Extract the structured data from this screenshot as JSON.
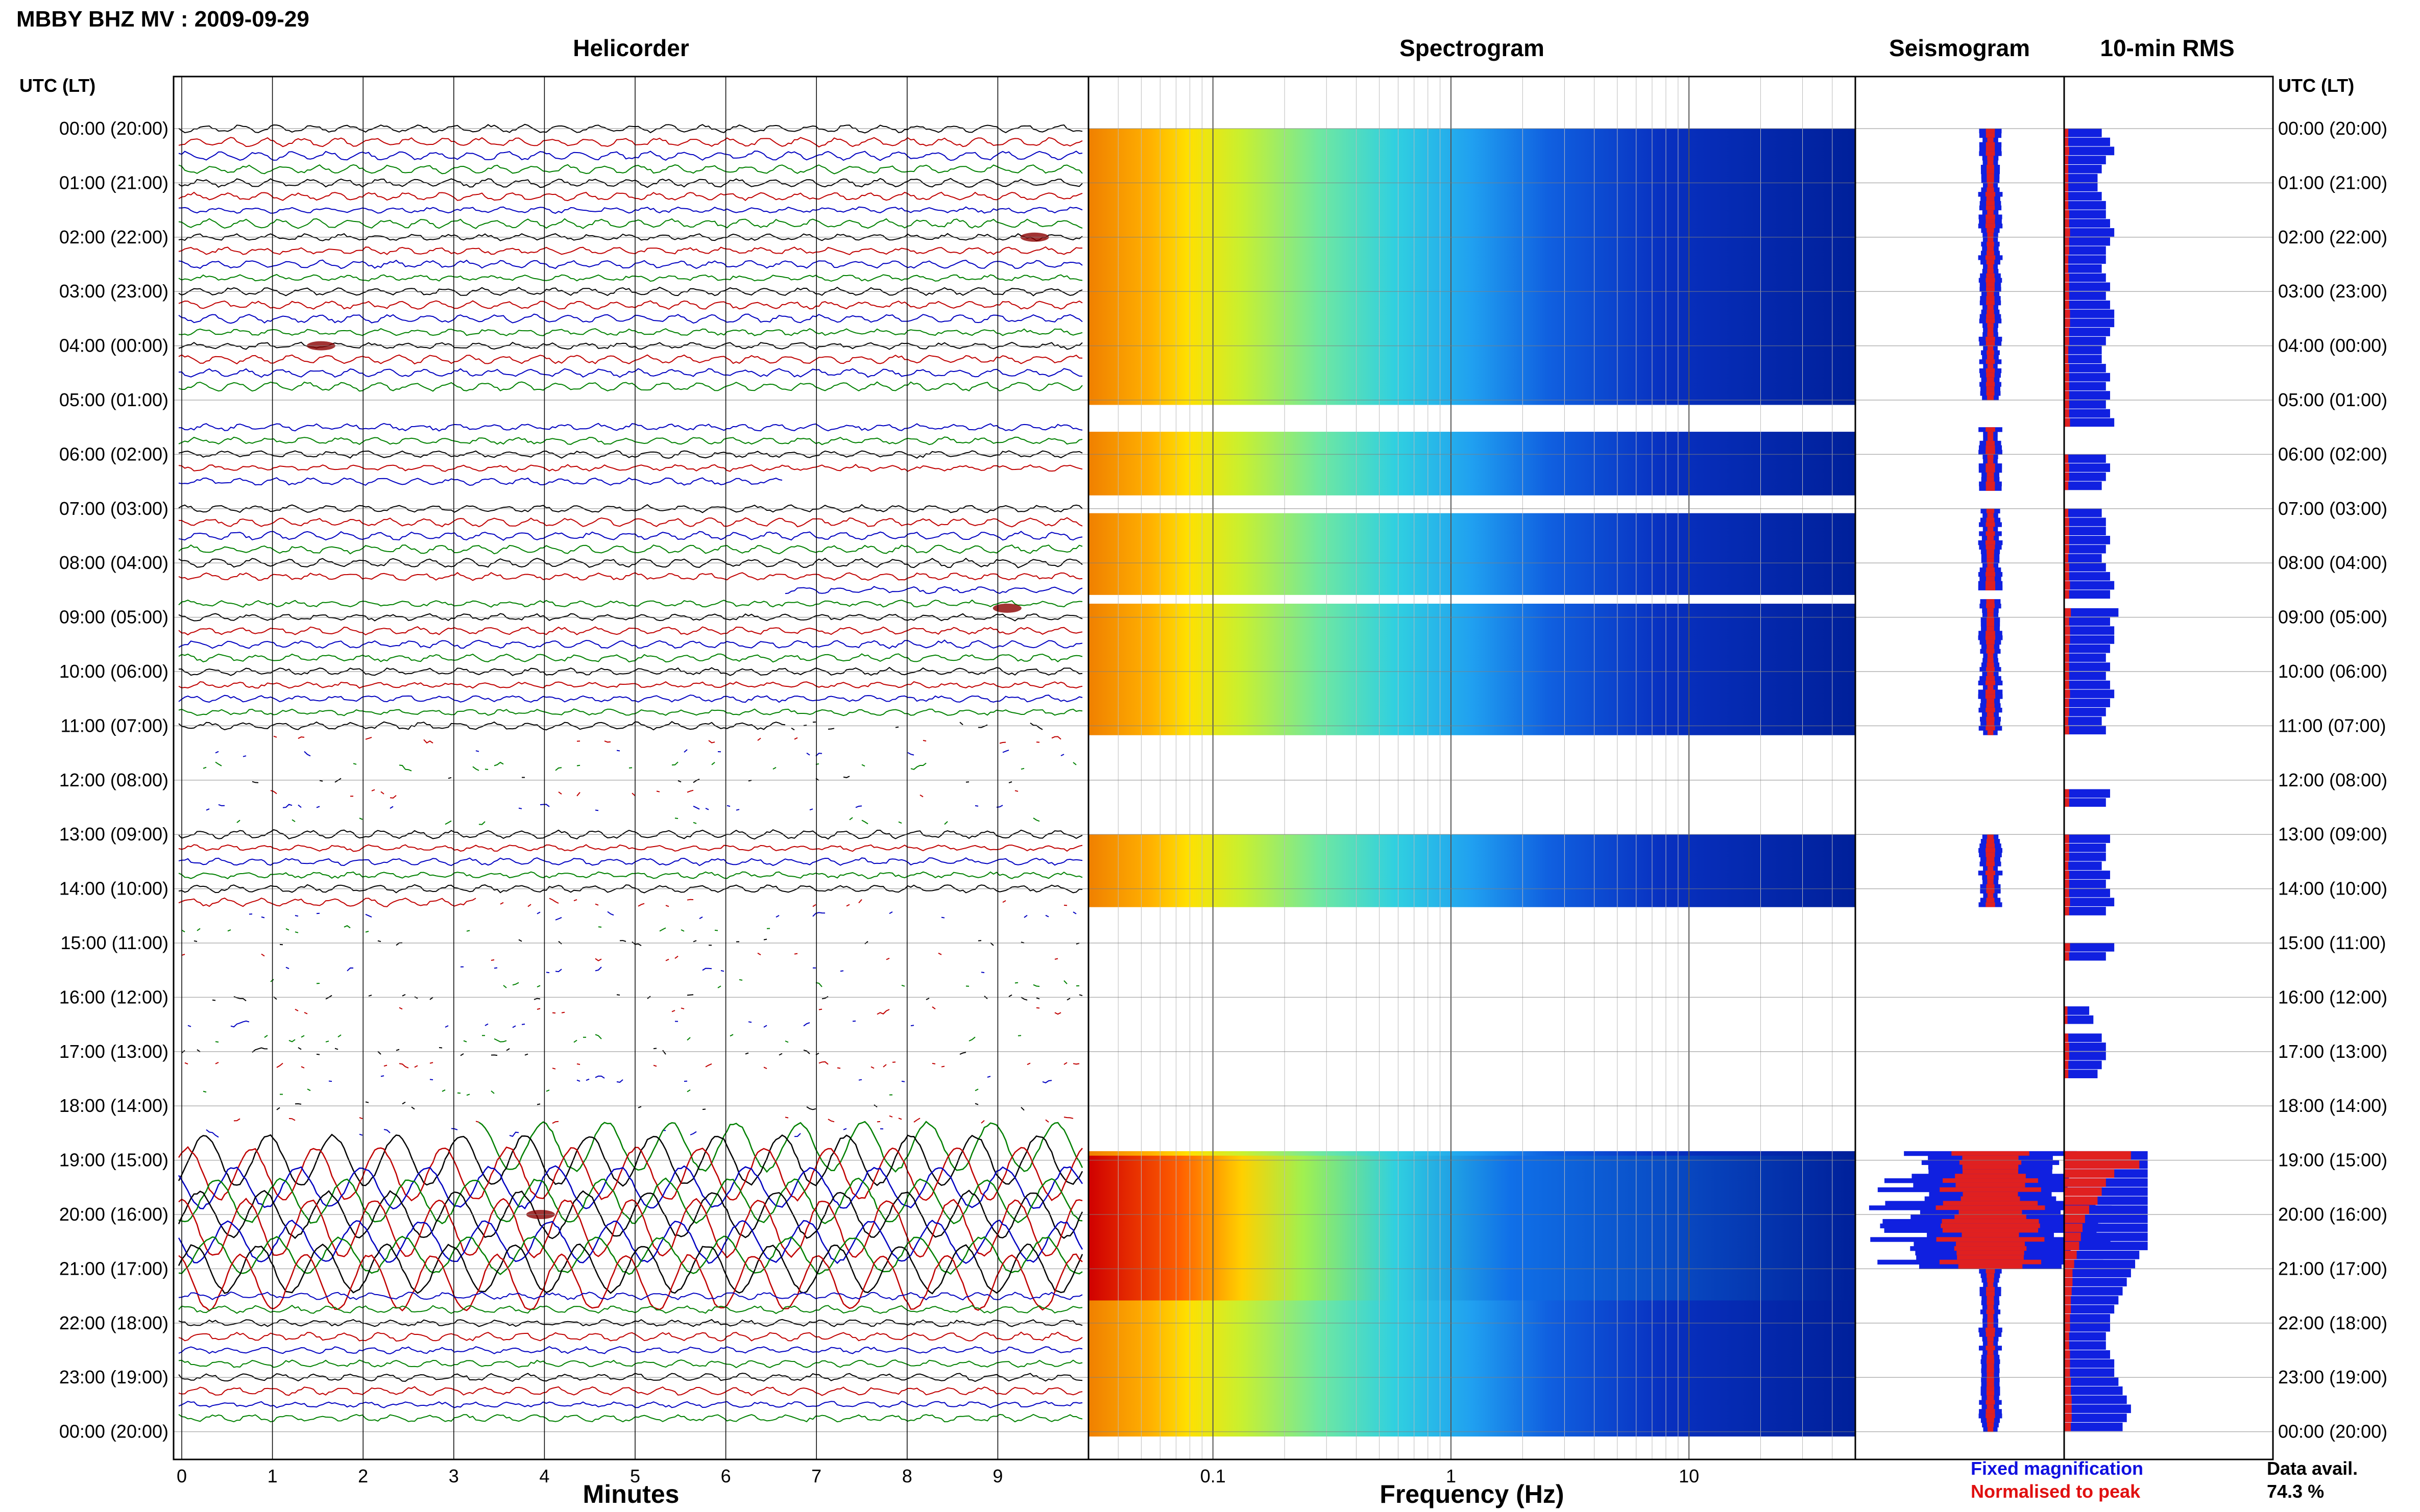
{
  "header": {
    "title": "MBBY BHZ MV : 2009-09-29"
  },
  "panels": {
    "helicorder": {
      "title": "Helicorder"
    },
    "spectrogram": {
      "title": "Spectrogram"
    },
    "seismogram": {
      "title": "Seismogram"
    },
    "rms": {
      "title": "10-min RMS"
    }
  },
  "axes": {
    "time_label": "UTC (LT)",
    "time_ticks": [
      "00:00 (20:00)",
      "01:00 (21:00)",
      "02:00 (22:00)",
      "03:00 (23:00)",
      "04:00 (00:00)",
      "05:00 (01:00)",
      "06:00 (02:00)",
      "07:00 (03:00)",
      "08:00 (04:00)",
      "09:00 (05:00)",
      "10:00 (06:00)",
      "11:00 (07:00)",
      "12:00 (08:00)",
      "13:00 (09:00)",
      "14:00 (10:00)",
      "15:00 (11:00)",
      "16:00 (12:00)",
      "17:00 (13:00)",
      "18:00 (14:00)",
      "19:00 (15:00)",
      "20:00 (16:00)",
      "21:00 (17:00)",
      "22:00 (18:00)",
      "23:00 (19:00)",
      "00:00 (20:00)"
    ],
    "minutes_label": "Minutes",
    "minutes_ticks": [
      "0",
      "1",
      "2",
      "3",
      "4",
      "5",
      "6",
      "7",
      "8",
      "9"
    ],
    "frequency_label": "Frequency (Hz)",
    "frequency_ticks": [
      "0.1",
      "1",
      "10"
    ]
  },
  "legend": {
    "fixed": {
      "text": "Fixed magnification",
      "color": "#1010e0"
    },
    "normalised": {
      "text": "Normalised to peak",
      "color": "#e01010"
    }
  },
  "availability": {
    "label": "Data avail.",
    "value": "74.3 %"
  },
  "chart_data": {
    "type": "helicorder",
    "station": "MBBY BHZ MV",
    "date": "2009-09-29",
    "time_range_utc": [
      "00:00",
      "24:00"
    ],
    "helicorder_minutes_range": [
      0,
      10
    ],
    "spectrogram_frequency_hz_range": [
      0.03,
      50
    ],
    "frequency_scale": "log",
    "data_available_percent": 74.3,
    "data_gaps_utc": [
      [
        "05:00",
        "05:30"
      ],
      [
        "06:40",
        "07:00"
      ],
      [
        "08:30",
        "08:40"
      ],
      [
        "11:10",
        "13:00"
      ],
      [
        "14:20",
        "18:50"
      ]
    ],
    "events": [
      {
        "utc": "02:00",
        "minute": 9.3,
        "kind": "small event"
      },
      {
        "utc": "04:00",
        "minute": 1.5,
        "kind": "spike"
      },
      {
        "utc": "08:50",
        "minute": 9.0,
        "kind": "local event"
      },
      {
        "utc": "20:00",
        "minute": 3.9,
        "kind": "event within microseism"
      }
    ],
    "rms_10min_relative": [
      {
        "hour": 0,
        "fixed": [
          0.45,
          0.55,
          0.6,
          0.5,
          0.45,
          0.4
        ],
        "normalised": [
          0.05,
          0.05,
          0.06,
          0.05,
          0.05,
          0.05
        ]
      },
      {
        "hour": 1,
        "fixed": [
          0.4,
          0.45,
          0.5,
          0.5,
          0.55,
          0.6
        ],
        "normalised": [
          0.05,
          0.05,
          0.05,
          0.06,
          0.06,
          0.07
        ]
      },
      {
        "hour": 2,
        "fixed": [
          0.55,
          0.5,
          0.5,
          0.45,
          0.5,
          0.55
        ],
        "normalised": [
          0.06,
          0.06,
          0.05,
          0.05,
          0.06,
          0.06
        ]
      },
      {
        "hour": 3,
        "fixed": [
          0.5,
          0.55,
          0.6,
          0.6,
          0.55,
          0.5
        ],
        "normalised": [
          0.06,
          0.06,
          0.07,
          0.07,
          0.06,
          0.06
        ]
      },
      {
        "hour": 4,
        "fixed": [
          0.45,
          0.45,
          0.5,
          0.55,
          0.5,
          0.55
        ],
        "normalised": [
          0.05,
          0.05,
          0.06,
          0.06,
          0.06,
          0.06
        ]
      },
      {
        "hour": 5,
        "fixed": [
          0.5,
          0.55,
          0.6,
          null,
          null,
          null
        ],
        "normalised": [
          0.06,
          0.06,
          0.07,
          null,
          null,
          null
        ]
      },
      {
        "hour": 6,
        "fixed": [
          0.5,
          0.55,
          0.5,
          0.45,
          null,
          null
        ],
        "normalised": [
          0.05,
          0.06,
          0.06,
          0.05,
          null,
          null
        ]
      },
      {
        "hour": 7,
        "fixed": [
          0.45,
          0.5,
          0.5,
          0.55,
          0.5,
          0.45
        ],
        "normalised": [
          0.05,
          0.06,
          0.06,
          0.06,
          0.06,
          0.05
        ]
      },
      {
        "hour": 8,
        "fixed": [
          0.5,
          0.55,
          0.6,
          0.55,
          null,
          0.65
        ],
        "normalised": [
          0.06,
          0.06,
          0.07,
          0.06,
          null,
          0.08
        ]
      },
      {
        "hour": 9,
        "fixed": [
          0.55,
          0.6,
          0.6,
          0.55,
          0.5,
          0.55
        ],
        "normalised": [
          0.06,
          0.07,
          0.07,
          0.06,
          0.06,
          0.06
        ]
      },
      {
        "hour": 10,
        "fixed": [
          0.5,
          0.55,
          0.6,
          0.55,
          0.5,
          0.45
        ],
        "normalised": [
          0.06,
          0.06,
          0.07,
          0.06,
          0.06,
          0.05
        ]
      },
      {
        "hour": 11,
        "fixed": [
          0.5,
          null,
          null,
          null,
          null,
          null
        ],
        "normalised": [
          0.06,
          null,
          null,
          null,
          null,
          null
        ]
      },
      {
        "hour": 12,
        "fixed": [
          null,
          0.55,
          0.5,
          null,
          null,
          null
        ],
        "normalised": [
          null,
          0.06,
          0.06,
          null,
          null,
          null
        ]
      },
      {
        "hour": 13,
        "fixed": [
          0.55,
          0.5,
          0.5,
          0.45,
          0.55,
          0.5
        ],
        "normalised": [
          0.06,
          0.06,
          0.06,
          0.05,
          0.06,
          0.06
        ]
      },
      {
        "hour": 14,
        "fixed": [
          0.55,
          0.6,
          0.5,
          null,
          null,
          null
        ],
        "normalised": [
          0.06,
          0.07,
          0.06,
          null,
          null,
          null
        ]
      },
      {
        "hour": 15,
        "fixed": [
          0.6,
          0.5,
          null,
          null,
          null,
          null
        ],
        "normalised": [
          0.07,
          0.06,
          null,
          null,
          null,
          null
        ]
      },
      {
        "hour": 16,
        "fixed": [
          null,
          0.3,
          0.35,
          null,
          0.45,
          0.5
        ],
        "normalised": [
          null,
          0.04,
          0.04,
          null,
          0.05,
          0.06
        ]
      },
      {
        "hour": 17,
        "fixed": [
          0.5,
          0.45,
          0.4,
          null,
          null,
          null
        ],
        "normalised": [
          0.06,
          0.05,
          0.05,
          null,
          null,
          null
        ]
      },
      {
        "hour": 18,
        "fixed": [
          null,
          null,
          null,
          null,
          null,
          1.0
        ],
        "normalised": [
          null,
          null,
          null,
          null,
          null,
          0.8
        ]
      },
      {
        "hour": 19,
        "fixed": [
          1.0,
          1.0,
          1.0,
          1.0,
          1.0,
          1.0
        ],
        "normalised": [
          0.9,
          0.6,
          0.5,
          0.45,
          0.4,
          0.3
        ]
      },
      {
        "hour": 20,
        "fixed": [
          1.0,
          1.0,
          1.0,
          1.0,
          0.9,
          0.85
        ],
        "normalised": [
          0.25,
          0.22,
          0.2,
          0.18,
          0.15,
          0.12
        ]
      },
      {
        "hour": 21,
        "fixed": [
          0.8,
          0.75,
          0.7,
          0.65,
          0.6,
          0.55
        ],
        "normalised": [
          0.1,
          0.1,
          0.09,
          0.08,
          0.08,
          0.07
        ]
      },
      {
        "hour": 22,
        "fixed": [
          0.55,
          0.5,
          0.5,
          0.55,
          0.6,
          0.6
        ],
        "normalised": [
          0.07,
          0.06,
          0.06,
          0.07,
          0.07,
          0.07
        ]
      },
      {
        "hour": 23,
        "fixed": [
          0.65,
          0.7,
          0.75,
          0.8,
          0.75,
          0.7
        ],
        "normalised": [
          0.08,
          0.08,
          0.09,
          0.09,
          0.09,
          0.08
        ]
      }
    ]
  }
}
